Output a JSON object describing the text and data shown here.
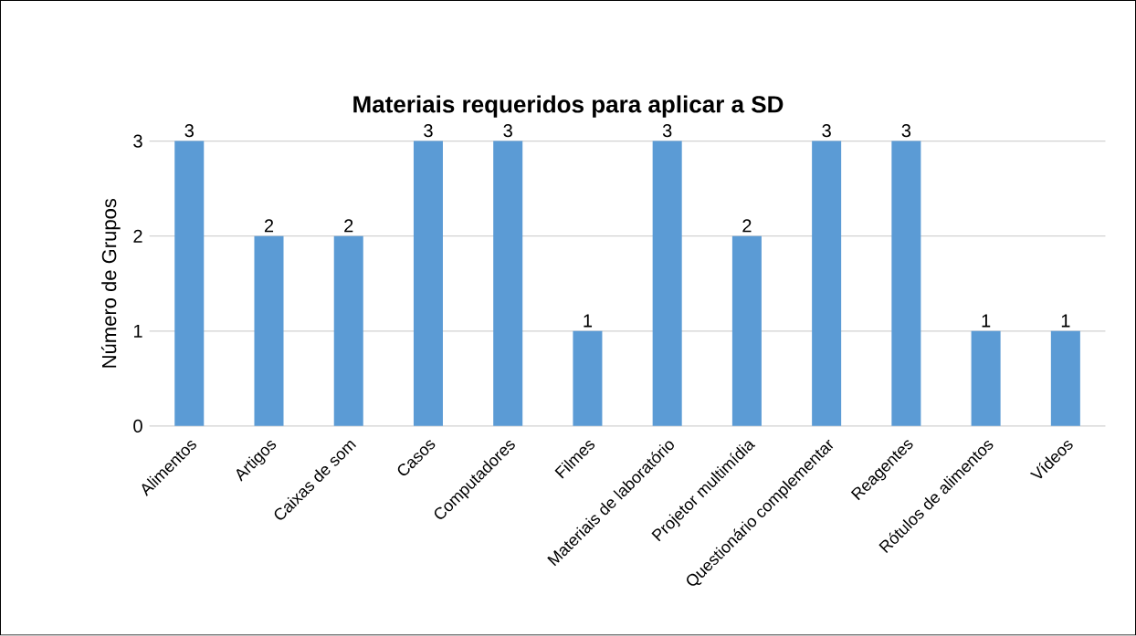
{
  "chart_data": {
    "type": "bar",
    "title": "Materiais requeridos para aplicar a SD",
    "ylabel": "Número de Grupos",
    "categories": [
      "Alimentos",
      "Artigos",
      "Caixas de som",
      "Casos",
      "Computadores",
      "Filmes",
      "Materiais de laboratório",
      "Projetor multimídia",
      "Questionário complementar",
      "Reagentes",
      "Rótulos de alimentos",
      "Vídeos"
    ],
    "values": [
      3,
      2,
      2,
      3,
      3,
      1,
      3,
      2,
      3,
      3,
      1,
      1
    ],
    "color": "#5b9bd5",
    "ylim": [
      0,
      3
    ],
    "yticks": [
      0,
      1,
      2,
      3
    ],
    "grid": "y",
    "data_labels": true
  }
}
